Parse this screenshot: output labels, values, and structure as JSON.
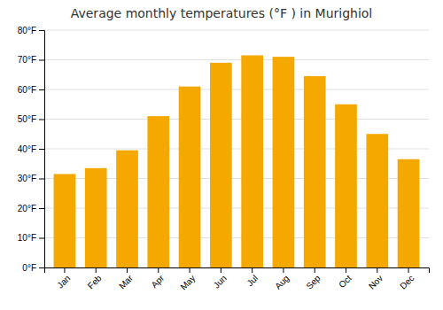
{
  "chart_data": {
    "type": "bar",
    "title": "Average monthly temperatures (°F ) in Murighiol",
    "categories": [
      "Jan",
      "Feb",
      "Mar",
      "Apr",
      "May",
      "Jun",
      "Jul",
      "Aug",
      "Sep",
      "Oct",
      "Nov",
      "Dec"
    ],
    "values": [
      31.5,
      33.5,
      39.5,
      51.0,
      61.0,
      69.0,
      71.5,
      71.0,
      64.5,
      55.0,
      45.0,
      36.5
    ],
    "color": "#F5A800",
    "ylim": [
      0,
      80
    ],
    "yticks": [
      {
        "value": 0,
        "label": "0°F"
      },
      {
        "value": 10,
        "label": "10°F"
      },
      {
        "value": 20,
        "label": "20°F"
      },
      {
        "value": 30,
        "label": "30°F"
      },
      {
        "value": 40,
        "label": "40°F"
      },
      {
        "value": 50,
        "label": "50°F"
      },
      {
        "value": 60,
        "label": "60°F"
      },
      {
        "value": 70,
        "label": "70°F"
      },
      {
        "value": 80,
        "label": "80°F"
      }
    ],
    "grid": true
  }
}
